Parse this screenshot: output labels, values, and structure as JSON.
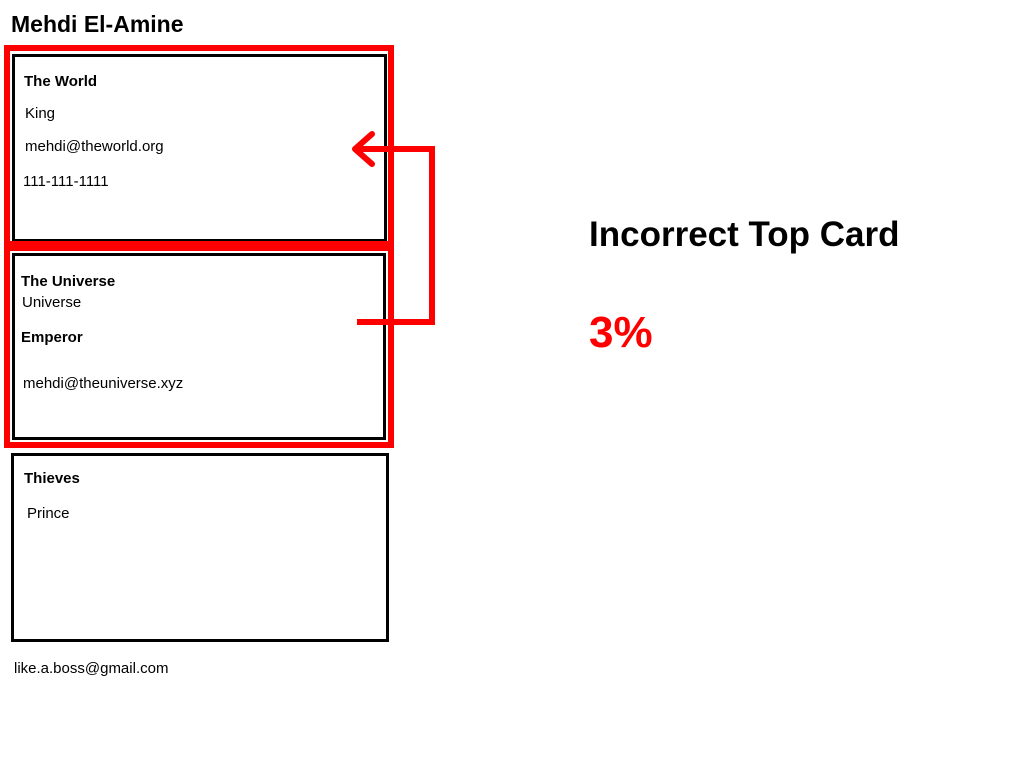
{
  "person": {
    "name": "Mehdi El-Amine"
  },
  "cards": [
    {
      "title": "The World",
      "role": "King",
      "email": "mehdi@theworld.org",
      "phone": "111-111-1111"
    },
    {
      "title": "The Universe",
      "subtitle": "Universe",
      "role": "Emperor",
      "email": "mehdi@theuniverse.xyz"
    },
    {
      "title": "Thieves",
      "role": "Prince"
    }
  ],
  "footer": {
    "email": "like.a.boss@gmail.com"
  },
  "verdict": {
    "title": "Incorrect Top Card",
    "score": "3%"
  },
  "colors": {
    "highlight": "#ff0000",
    "card_border": "#000000",
    "score": "#ff0000"
  },
  "annotations": {
    "arrow_icon": "reorder-arrow-icon"
  }
}
